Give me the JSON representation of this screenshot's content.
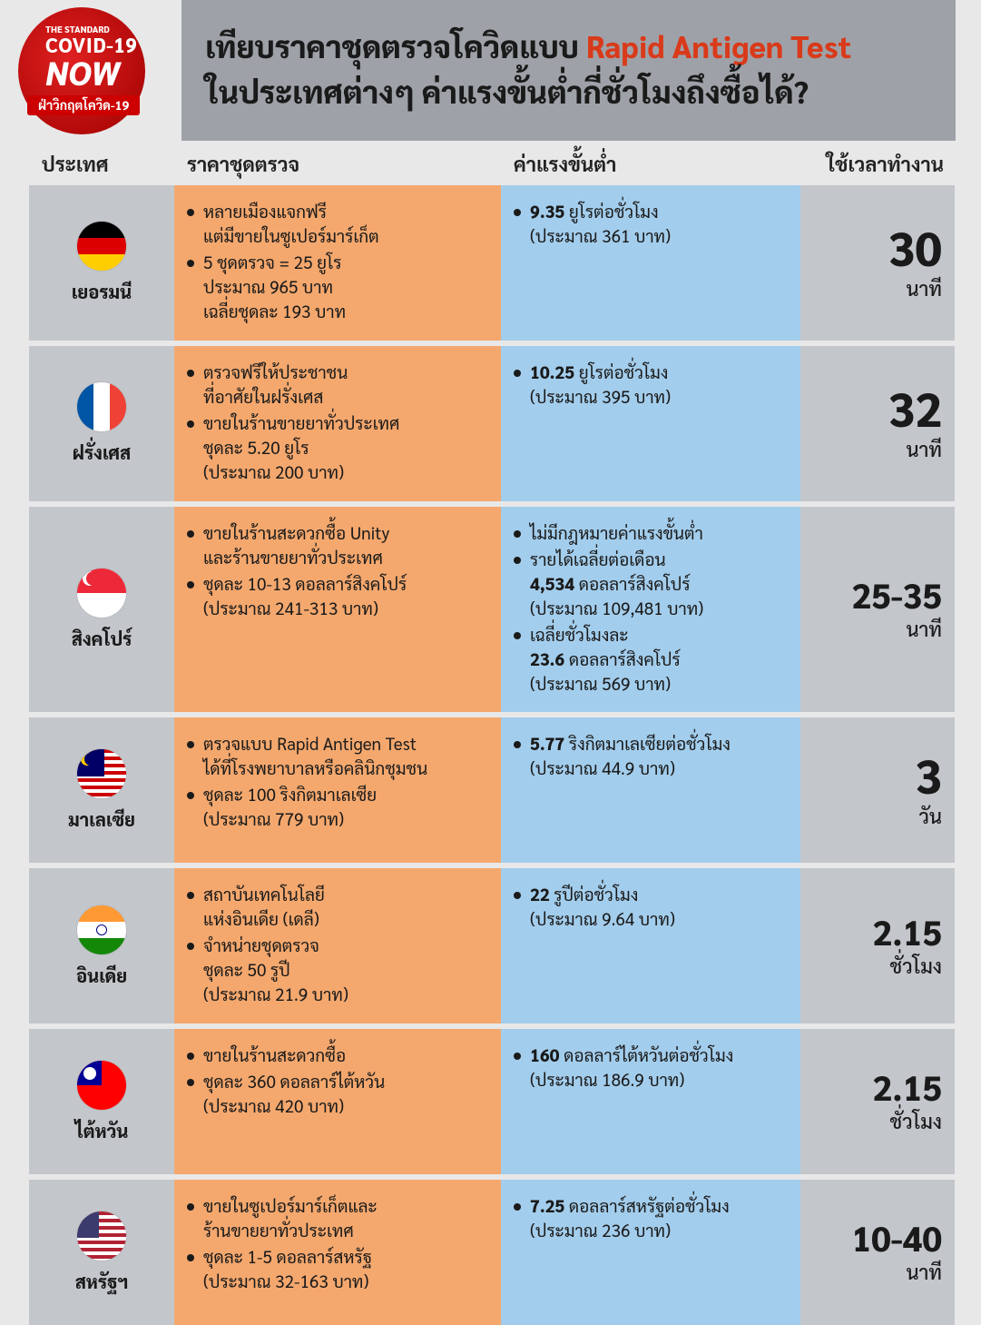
{
  "logo": {
    "top": "THE STANDARD",
    "mid": "COVID-19",
    "big": "NOW",
    "tag": "ฝ่าวิกฤตโควิด-19"
  },
  "header": {
    "l1a": "เทียบราคาชุดตรวจโควิดแบบ",
    "l1b": "Rapid Antigen Test",
    "l2": "ในประเทศต่างๆ ค่าแรงขั้นต่ำกี่ชั่วโมงถึงซื้อได้?"
  },
  "columns": {
    "country": "ประเทศ",
    "price": "ราคาชุดตรวจ",
    "wage": "ค่าแรงขั้นต่ำ",
    "time": "ใช้เวลาทำงาน"
  },
  "colors": {
    "row_bg": "#c3c6cb",
    "price_bg": "#f4a86e",
    "wage_bg": "#a3cdec",
    "country_bg": "#c3c6cb",
    "time_bg": "#c3c6cb"
  },
  "rows": [
    {
      "name": "เยอรมนี",
      "flag": {
        "type": "h3",
        "c": [
          "#000000",
          "#dd0000",
          "#ffce00"
        ]
      },
      "price": [
        "หลายเมืองแจกฟรี\nแต่มีขายในซูเปอร์มาร์เก็ต",
        "5 ชุดตรวจ = 25 ยูโร\nประมาณ 965 บาท\nเฉลี่ยชุดละ 193 บาท"
      ],
      "wage": [
        "<b>9.35</b> ยูโรต่อชั่วโมง\n(ประมาณ 361 บาท)"
      ],
      "time": {
        "num": "30",
        "unit": "นาที"
      }
    },
    {
      "name": "ฝรั่งเศส",
      "flag": {
        "type": "v3",
        "c": [
          "#0055a4",
          "#ffffff",
          "#ef4135"
        ]
      },
      "price": [
        "ตรวจฟรีให้ประชาชน\nที่อาศัยในฝรั่งเศส",
        "ขายในร้านขายยาทั่วประเทศ\nชุดละ 5.20 ยูโร\n(ประมาณ 200 บาท)"
      ],
      "wage": [
        "<b>10.25</b> ยูโรต่อชั่วโมง\n(ประมาณ 395 บาท)"
      ],
      "time": {
        "num": "32",
        "unit": "นาที"
      }
    },
    {
      "name": "สิงคโปร์",
      "flag": {
        "type": "sg"
      },
      "price": [
        "ขายในร้านสะดวกซื้อ Unity\nและร้านขายยาทั่วประเทศ",
        "ชุดละ 10-13 ดอลลาร์สิงคโปร์\n(ประมาณ 241-313 บาท)"
      ],
      "wage": [
        "ไม่มีกฎหมายค่าแรงขั้นต่ำ",
        "รายได้เฉลี่ยต่อเดือน\n<b>4,534</b> ดอลลาร์สิงคโปร์\n(ประมาณ 109,481 บาท)",
        "เฉลี่ยชั่วโมงละ\n<b>23.6</b> ดอลลาร์สิงคโปร์\n(ประมาณ 569 บาท)"
      ],
      "time": {
        "num": "25-35",
        "unit": "นาที"
      }
    },
    {
      "name": "มาเลเซีย",
      "flag": {
        "type": "my"
      },
      "price": [
        "ตรวจแบบ Rapid Antigen Test\nได้ที่โรงพยาบาลหรือคลินิกชุมชน",
        "ชุดละ 100 ริงกิตมาเลเซีย\n(ประมาณ 779 บาท)"
      ],
      "wage": [
        "<b>5.77</b> ริงกิตมาเลเซียต่อชั่วโมง\n(ประมาณ 44.9 บาท)"
      ],
      "time": {
        "num": "3",
        "unit": "วัน"
      }
    },
    {
      "name": "อินเดีย",
      "flag": {
        "type": "in"
      },
      "price": [
        "สถาบันเทคโนโลยี\nแห่งอินเดีย (เดลี)",
        "จำหน่ายชุดตรวจ\nชุดละ 50 รูปี\n(ประมาณ 21.9 บาท)"
      ],
      "wage": [
        "<b>22</b> รูปีต่อชั่วโมง\n(ประมาณ 9.64 บาท)"
      ],
      "time": {
        "num": "2.15",
        "unit": "ชั่วโมง"
      }
    },
    {
      "name": "ไต้หวัน",
      "flag": {
        "type": "tw"
      },
      "price": [
        "ขายในร้านสะดวกซื้อ",
        "ชุดละ 360 ดอลลาร์ไต้หวัน\n(ประมาณ 420 บาท)"
      ],
      "wage": [
        "<b>160</b> ดอลลาร์ไต้หวันต่อชั่วโมง\n(ประมาณ 186.9 บาท)"
      ],
      "time": {
        "num": "2.15",
        "unit": "ชั่วโมง"
      }
    },
    {
      "name": "สหรัฐฯ",
      "flag": {
        "type": "us"
      },
      "price": [
        "ขายในซูเปอร์มาร์เก็ตและ\nร้านขายยาทั่วประเทศ",
        "ชุดละ 1-5 ดอลลาร์สหรัฐ\n(ประมาณ 32-163 บาท)"
      ],
      "wage": [
        "<b>7.25</b> ดอลลาร์สหรัฐต่อชั่วโมง\n(ประมาณ 236 บาท)"
      ],
      "time": {
        "num": "10-40",
        "unit": "นาที"
      }
    }
  ]
}
